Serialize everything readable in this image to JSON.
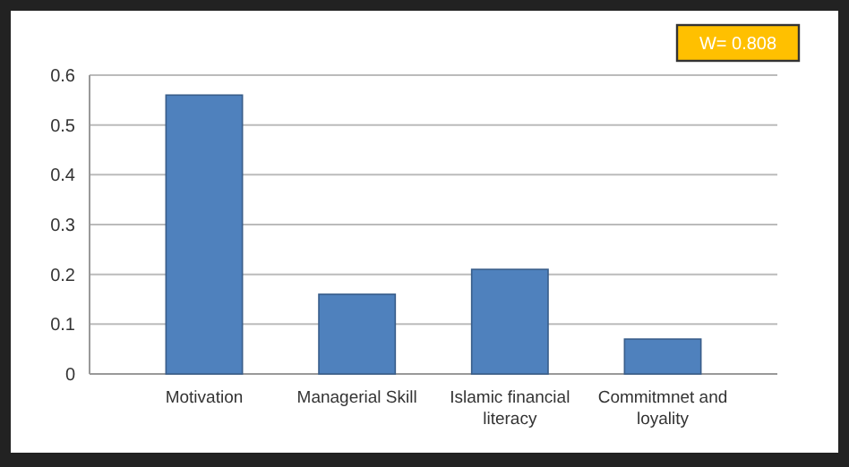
{
  "chart_data": {
    "type": "bar",
    "categories": [
      "Motivation",
      "Managerial Skill",
      "Islamic financial literacy",
      "Commitmnet and loyality"
    ],
    "values": [
      0.56,
      0.16,
      0.21,
      0.07
    ],
    "color": "#4f81bd",
    "ylim": [
      0,
      0.6
    ],
    "yticks": [
      0,
      0.1,
      0.2,
      0.3,
      0.4,
      0.5,
      0.6
    ],
    "grid": "y",
    "annotations": [
      "W= 0.808"
    ]
  }
}
